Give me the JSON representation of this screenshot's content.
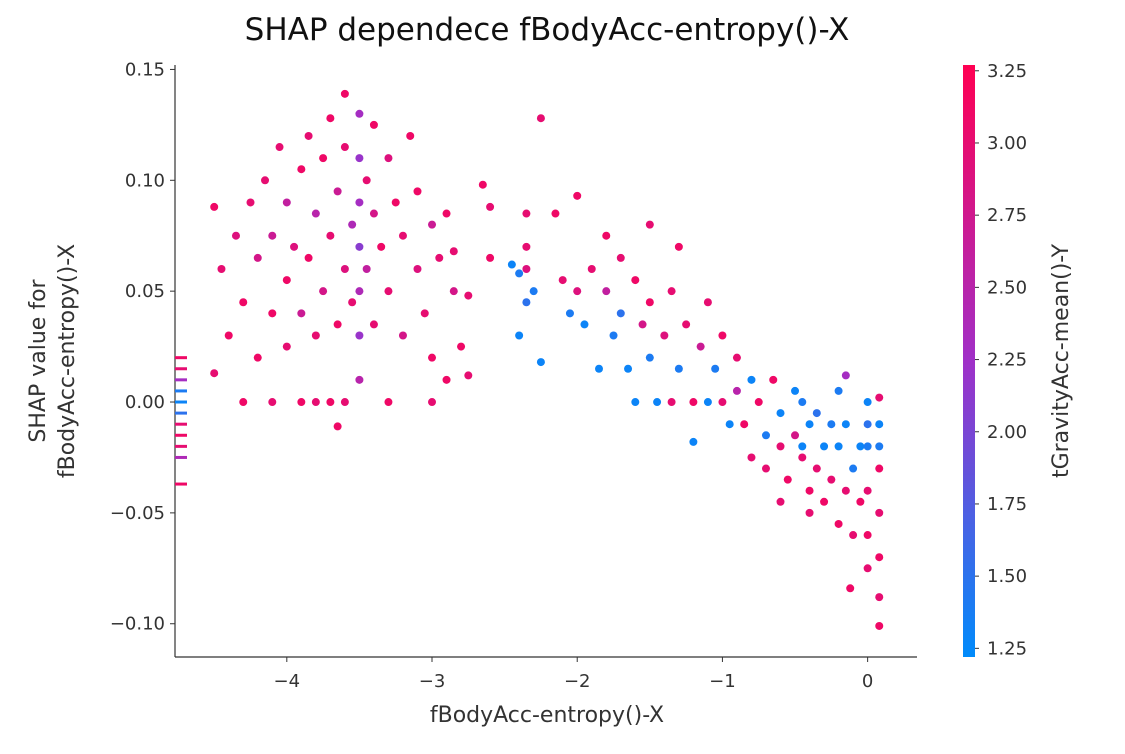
{
  "chart_data": {
    "type": "scatter",
    "title": "SHAP dependece fBodyAcc-entropy()-X",
    "xlabel": "fBodyAcc-entropy()-X",
    "ylabel": [
      "SHAP value for",
      "fBodyAcc-entropy()-X"
    ],
    "colorbar_label": "tGravityAcc-mean()-Y",
    "xlim": [
      -4.77,
      0.34
    ],
    "ylim": [
      -0.115,
      0.152
    ],
    "clim": [
      1.22,
      3.27
    ],
    "xticks": [
      {
        "value": -4,
        "label": "−4"
      },
      {
        "value": -3,
        "label": "−3"
      },
      {
        "value": -2,
        "label": "−2"
      },
      {
        "value": -1,
        "label": "−1"
      },
      0
    ],
    "yticks": [
      {
        "value": -0.1,
        "label": "−0.10"
      },
      {
        "value": -0.05,
        "label": "−0.05"
      },
      {
        "value": 0,
        "label": "0.00"
      },
      0.05,
      {
        "value": 0.1,
        "label": "0.10"
      },
      0.15
    ],
    "cticks": [
      1.25,
      {
        "value": 1.5,
        "label": "1.50"
      },
      1.75,
      {
        "value": 2,
        "label": "2.00"
      },
      2.25,
      {
        "value": 2.5,
        "label": "2.50"
      },
      2.75,
      {
        "value": 3,
        "label": "3.00"
      },
      3.25
    ],
    "colormap": [
      "#008bfb",
      "#a030c8",
      "#ff0052"
    ],
    "x": [
      -4.5,
      -4.45,
      -4.4,
      -4.35,
      -4.3,
      -4.25,
      -4.2,
      -4.2,
      -4.15,
      -4.1,
      -4.1,
      -4.05,
      -4.0,
      -4.0,
      -4.0,
      -3.95,
      -3.9,
      -3.9,
      -3.85,
      -3.85,
      -3.8,
      -3.8,
      -3.75,
      -3.75,
      -3.7,
      -3.7,
      -3.65,
      -3.65,
      -3.6,
      -3.6,
      -3.6,
      -3.55,
      -3.55,
      -3.5,
      -3.5,
      -3.5,
      -3.5,
      -3.5,
      -3.5,
      -3.5,
      -3.45,
      -3.45,
      -3.4,
      -3.4,
      -3.4,
      -3.35,
      -3.3,
      -3.3,
      -3.25,
      -3.2,
      -3.2,
      -3.15,
      -3.1,
      -3.1,
      -3.05,
      -3.0,
      -3.0,
      -2.95,
      -2.9,
      -2.85,
      -2.8,
      -2.85,
      -2.6,
      -2.75,
      -4.3,
      -4.1,
      -3.9,
      -3.8,
      -3.7,
      -3.6,
      -3.3,
      -3.0,
      -3.65,
      -4.5,
      -2.9,
      -2.75,
      -2.65,
      -2.6,
      -2.45,
      -2.4,
      -2.4,
      -2.35,
      -2.35,
      -2.35,
      -2.35,
      -2.3,
      -2.25,
      -2.25,
      -2.15,
      -2.1,
      -2.05,
      -2.0,
      -2.0,
      -1.95,
      -1.9,
      -1.85,
      -1.8,
      -1.8,
      -1.75,
      -1.7,
      -1.7,
      -1.65,
      -1.6,
      -1.6,
      -1.55,
      -1.5,
      -1.5,
      -1.5,
      -1.45,
      -1.4,
      -1.35,
      -1.35,
      -1.3,
      -1.3,
      -1.25,
      -1.2,
      -1.2,
      -1.15,
      -1.1,
      -1.1,
      -1.05,
      -1.0,
      -1.0,
      -0.95,
      -0.9,
      -0.9,
      -0.85,
      -0.8,
      -0.8,
      -0.75,
      -0.7,
      -0.7,
      -0.65,
      -0.6,
      -0.6,
      -0.55,
      -0.5,
      -0.5,
      -0.45,
      -0.45,
      -0.4,
      -0.4,
      -0.35,
      -0.35,
      -0.3,
      -0.3,
      -0.25,
      -0.25,
      -0.2,
      -0.2,
      -0.2,
      -0.15,
      -0.15,
      -0.15,
      -0.12,
      -0.1,
      -0.1,
      -0.05,
      -0.05,
      0,
      0,
      0,
      0,
      0,
      0,
      0.08,
      0.08,
      0.08,
      0.08,
      0.08,
      0.08,
      0.08,
      0.08,
      -0.4,
      -0.6,
      -0.45
    ],
    "values": [
      0.088,
      0.06,
      0.03,
      0.075,
      0.045,
      0.09,
      0.02,
      0.065,
      0.1,
      0.04,
      0.075,
      0.115,
      0.055,
      0.09,
      0.025,
      0.07,
      0.105,
      0.04,
      0.12,
      0.065,
      0.085,
      0.03,
      0.11,
      0.05,
      0.075,
      0.128,
      0.095,
      0.035,
      0.06,
      0.115,
      0.139,
      0.08,
      0.045,
      0.13,
      0.11,
      0.09,
      0.07,
      0.05,
      0.03,
      0.01,
      0.1,
      0.06,
      0.125,
      0.085,
      0.035,
      0.07,
      0.11,
      0.05,
      0.09,
      0.03,
      0.075,
      0.12,
      0.06,
      0.095,
      0.04,
      0.08,
      0.02,
      0.065,
      0.085,
      0.05,
      0.025,
      0.068,
      0.065,
      0.048,
      0,
      0,
      0,
      0,
      0,
      0,
      0,
      0,
      -0.011,
      0.013,
      0.01,
      0.012,
      0.098,
      0.088,
      0.062,
      0.058,
      0.03,
      0.045,
      0.085,
      0.07,
      0.06,
      0.05,
      0.128,
      0.018,
      0.085,
      0.055,
      0.04,
      0.093,
      0.05,
      0.035,
      0.06,
      0.015,
      0.075,
      0.05,
      0.03,
      0.065,
      0.04,
      0.015,
      0.055,
      0,
      0.035,
      0.08,
      0.045,
      0.02,
      0,
      0.03,
      0.05,
      0,
      0.07,
      0.015,
      0.035,
      0,
      -0.018,
      0.025,
      0.045,
      0,
      0.015,
      0.03,
      0,
      -0.01,
      0.02,
      0.005,
      -0.01,
      0.01,
      -0.025,
      0,
      -0.015,
      -0.03,
      0.01,
      -0.005,
      -0.02,
      -0.035,
      0.005,
      -0.015,
      -0.025,
      0,
      -0.04,
      -0.01,
      -0.03,
      -0.005,
      -0.02,
      -0.045,
      -0.01,
      -0.035,
      -0.055,
      -0.02,
      0.005,
      -0.04,
      -0.01,
      0.012,
      -0.084,
      -0.03,
      -0.06,
      -0.02,
      -0.045,
      0,
      -0.02,
      -0.04,
      -0.06,
      -0.075,
      -0.01,
      0.002,
      -0.01,
      -0.03,
      -0.05,
      -0.07,
      -0.088,
      -0.101,
      -0.02,
      -0.05,
      -0.045,
      -0.02
    ],
    "color_values": [
      3.1,
      3.0,
      3.1,
      2.9,
      3.1,
      3.0,
      3.1,
      2.8,
      3.0,
      3.1,
      2.7,
      3.0,
      3.1,
      2.6,
      3.0,
      2.9,
      3.1,
      2.7,
      3.0,
      3.1,
      2.5,
      3.0,
      3.1,
      2.8,
      3.0,
      3.1,
      2.7,
      3.1,
      2.9,
      3.0,
      3.1,
      2.4,
      3.0,
      2.3,
      2.2,
      2.3,
      2.1,
      2.4,
      2.2,
      2.5,
      3.0,
      2.6,
      3.1,
      2.8,
      3.0,
      3.1,
      2.9,
      3.0,
      3.1,
      2.8,
      3.0,
      3.1,
      2.9,
      3.1,
      3.0,
      2.7,
      3.1,
      3.0,
      3.1,
      2.8,
      3.1,
      3.0,
      3.1,
      3.0,
      3.1,
      3.0,
      3.1,
      3.0,
      3.1,
      3.0,
      3.1,
      3.0,
      3.1,
      3.0,
      3.1,
      3.0,
      3.1,
      3.0,
      1.3,
      1.4,
      1.3,
      1.5,
      3.0,
      3.0,
      2.9,
      1.4,
      3.0,
      1.3,
      3.1,
      3.0,
      1.4,
      3.1,
      2.9,
      1.3,
      3.0,
      1.3,
      3.1,
      2.6,
      1.4,
      3.0,
      1.5,
      1.3,
      3.1,
      1.3,
      2.8,
      3.0,
      3.1,
      1.4,
      1.3,
      2.9,
      3.0,
      3.0,
      3.1,
      1.4,
      3.0,
      3.1,
      1.3,
      2.7,
      3.0,
      1.3,
      1.4,
      3.1,
      3.0,
      1.3,
      3.0,
      2.5,
      3.1,
      1.3,
      3.0,
      3.1,
      1.4,
      3.0,
      3.1,
      1.3,
      3.0,
      3.1,
      1.3,
      2.8,
      3.0,
      1.4,
      3.1,
      1.3,
      3.0,
      1.5,
      1.3,
      3.1,
      1.4,
      3.0,
      3.1,
      1.3,
      1.4,
      3.0,
      1.3,
      2.3,
      3.1,
      1.4,
      3.0,
      1.3,
      3.1,
      1.3,
      1.4,
      3.0,
      3.1,
      3.0,
      1.5,
      3.0,
      1.3,
      3.1,
      3.0,
      3.1,
      3.0,
      3.1,
      1.4,
      3.0,
      3.0,
      1.3
    ],
    "rug_values": [
      0.02,
      0.015,
      0.01,
      0.005,
      0,
      -0.005,
      -0.01,
      -0.015,
      -0.02,
      -0.025,
      -0.037
    ],
    "rug_color_values": [
      3.1,
      3.0,
      2.3,
      1.4,
      1.3,
      1.5,
      3.0,
      3.1,
      3.0,
      2.4,
      3.1
    ]
  }
}
